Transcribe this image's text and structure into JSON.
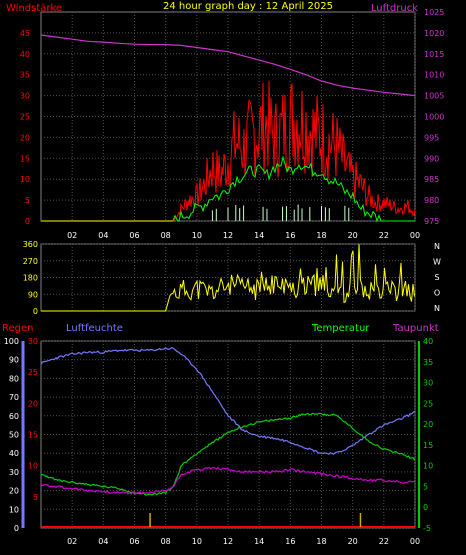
{
  "header": {
    "left_label": "Windstärke",
    "title": "24 hour graph day : 12 April 2025",
    "right_label": "Luftdruck"
  },
  "colors": {
    "wind": "#ff0000",
    "gust": "#ff0000",
    "avg": "#00ff00",
    "pressure": "#cc33cc",
    "winddir": "#ffff00",
    "humidity": "#7777ff",
    "temperature": "#00cc00",
    "dewpoint": "#cc00cc",
    "rain": "#ff0000",
    "rain_markers": "#ccaa00",
    "grid": "#505050",
    "ticks": "#ffffff"
  },
  "chart_data": [
    {
      "type": "line",
      "name": "wind_pressure",
      "x_ticks": [
        "02",
        "04",
        "06",
        "08",
        "10",
        "12",
        "14",
        "16",
        "18",
        "20",
        "22",
        "00"
      ],
      "x_range_hours": [
        0,
        24
      ],
      "left_axis": {
        "label": "Windstärke",
        "ticks": [
          "0",
          "5",
          "10",
          "15",
          "20",
          "25",
          "30",
          "35",
          "40",
          "45"
        ],
        "ylim": [
          0,
          50
        ]
      },
      "right_axis": {
        "label": "Luftdruck",
        "ticks": [
          "975",
          "980",
          "985",
          "990",
          "995",
          "1000",
          "1005",
          "1010",
          "1015",
          "1020",
          "1025"
        ],
        "ylim": [
          975,
          1025
        ]
      },
      "series": [
        {
          "name": "Luftdruck",
          "axis": "right",
          "x": [
            0,
            1,
            2,
            3,
            4,
            5,
            6,
            7,
            8,
            9,
            10,
            11,
            12,
            13,
            14,
            15,
            16,
            17,
            18,
            19,
            20,
            21,
            22,
            23,
            24
          ],
          "y": [
            1019.5,
            1019,
            1018.5,
            1018,
            1017.8,
            1017.5,
            1017.3,
            1017.2,
            1017.2,
            1017,
            1016.5,
            1016,
            1015.5,
            1014.5,
            1013.5,
            1012.5,
            1011.3,
            1010,
            1008.5,
            1007.5,
            1006.8,
            1006.3,
            1005.8,
            1005.4,
            1005
          ]
        },
        {
          "name": "gust",
          "x": [
            0,
            8.5,
            9,
            9.5,
            10,
            10.5,
            11,
            11.5,
            12,
            12.5,
            13,
            13.5,
            14,
            14.5,
            15,
            15.5,
            16,
            16.5,
            17,
            17.5,
            18,
            18.5,
            19,
            19.5,
            20,
            20.5,
            21,
            21.5,
            22,
            22.5,
            23,
            23.5,
            24
          ],
          "y": [
            0,
            0,
            4,
            7,
            8,
            12,
            18,
            15,
            20,
            26,
            24,
            28,
            30,
            32,
            27,
            30,
            33,
            34,
            32,
            29,
            28,
            26,
            24,
            18,
            14,
            12,
            8,
            6,
            6,
            5,
            4,
            5,
            3
          ]
        },
        {
          "name": "avg",
          "x": [
            0,
            8.5,
            9,
            9.5,
            10,
            10.5,
            11,
            11.5,
            12,
            12.5,
            13,
            13.5,
            14,
            14.5,
            15,
            15.5,
            16,
            16.5,
            17,
            17.5,
            18,
            18.5,
            19,
            19.5,
            20,
            20.5,
            21,
            21.5,
            22,
            22.5,
            23,
            23.5,
            24
          ],
          "y": [
            0,
            0,
            1,
            2,
            3,
            4,
            6,
            6,
            8,
            10,
            11,
            12,
            12,
            11,
            13,
            14,
            12,
            14,
            13,
            12,
            12,
            10,
            9,
            7,
            6,
            3,
            2,
            1,
            0,
            0,
            0,
            0,
            0
          ]
        }
      ]
    },
    {
      "type": "line",
      "name": "wind_direction",
      "x_range_hours": [
        0,
        24
      ],
      "ylim": [
        0,
        360
      ],
      "left_ticks": [
        "0",
        "90",
        "180",
        "270",
        "360"
      ],
      "right_labels": [
        "N",
        "W",
        "S",
        "O",
        "N"
      ],
      "series": [
        {
          "name": "Windrichtung",
          "x": [
            0,
            8,
            8.3,
            9,
            10,
            11,
            12,
            13,
            14,
            15,
            16,
            17,
            18,
            19,
            20,
            21,
            22,
            23,
            24
          ],
          "y": [
            0,
            0,
            90,
            110,
            120,
            100,
            140,
            130,
            110,
            150,
            120,
            130,
            140,
            110,
            100,
            120,
            130,
            110,
            100
          ]
        }
      ]
    },
    {
      "type": "line",
      "name": "humidity_temperature",
      "legend": [
        "Regen",
        "Luftfeuchte",
        "Temperatur",
        "Taupunkt"
      ],
      "x_ticks": [
        "02",
        "04",
        "06",
        "08",
        "10",
        "12",
        "14",
        "16",
        "18",
        "20",
        "22",
        "00"
      ],
      "x_range_hours": [
        0,
        24
      ],
      "axis_regen": {
        "ticks": [
          "0",
          "10",
          "20",
          "30",
          "40",
          "50",
          "60",
          "70",
          "80",
          "90",
          "100"
        ],
        "ylim": [
          0,
          100
        ]
      },
      "axis_luftfeuchte": {
        "ticks": [
          "5",
          "10",
          "15",
          "20",
          "25",
          "30"
        ],
        "ylim": [
          0,
          30
        ]
      },
      "axis_temperature": {
        "ticks": [
          "-5",
          "0",
          "5",
          "10",
          "15",
          "20",
          "25",
          "30",
          "35",
          "40"
        ],
        "ylim": [
          -5,
          40
        ]
      },
      "series": [
        {
          "name": "Luftfeuchte",
          "axis": "regen",
          "x": [
            0,
            1,
            2,
            3,
            4,
            5,
            6,
            7,
            8,
            8.5,
            9,
            10,
            11,
            12,
            13,
            14,
            15,
            16,
            17,
            18,
            19,
            20,
            21,
            22,
            23,
            24
          ],
          "y": [
            88,
            91,
            93,
            94,
            94,
            95,
            95,
            95,
            96,
            96,
            93,
            85,
            73,
            60,
            52,
            49,
            48,
            46,
            43,
            40,
            40,
            44,
            50,
            55,
            58,
            62
          ]
        },
        {
          "name": "Temperatur",
          "axis": "temperature",
          "x": [
            0,
            1,
            2,
            3,
            4,
            5,
            6,
            7,
            8,
            8.5,
            9,
            10,
            11,
            12,
            13,
            14,
            15,
            16,
            17,
            18,
            19,
            20,
            21,
            22,
            23,
            24
          ],
          "y": [
            8,
            6.5,
            6,
            5.5,
            5,
            4.5,
            3.5,
            3,
            3.5,
            5,
            10,
            13,
            15.5,
            18,
            19.5,
            20.5,
            21,
            21.5,
            22.5,
            22.5,
            22,
            19,
            16,
            14,
            13,
            11.5
          ]
        },
        {
          "name": "Taupunkt",
          "axis": "temperature",
          "x": [
            0,
            1,
            2,
            3,
            4,
            5,
            6,
            7,
            8,
            8.5,
            9,
            10,
            11,
            12,
            13,
            14,
            15,
            16,
            17,
            18,
            19,
            20,
            21,
            22,
            23,
            24
          ],
          "y": [
            5.5,
            5,
            4.5,
            4,
            3.8,
            3.5,
            3.4,
            3.5,
            4,
            5,
            8,
            9,
            9.5,
            9,
            8.5,
            8.5,
            8.5,
            9,
            8.5,
            8,
            7.5,
            7,
            6.5,
            6.5,
            6,
            6
          ]
        },
        {
          "name": "Regen",
          "axis": "regen",
          "x": [
            0,
            24
          ],
          "y": [
            0,
            0
          ]
        }
      ],
      "rain_markers_hours": [
        7,
        20.5
      ]
    }
  ]
}
